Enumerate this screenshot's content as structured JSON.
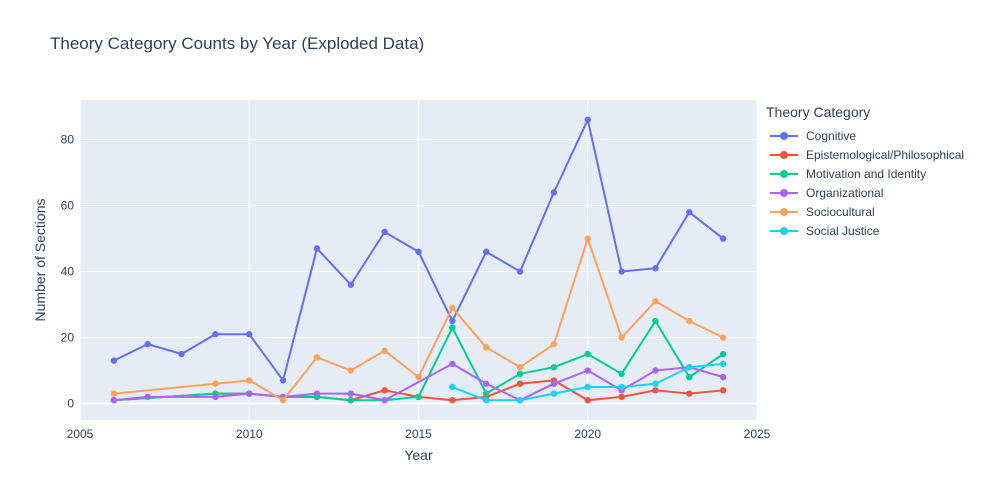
{
  "chart_data": {
    "type": "line",
    "title": "Theory Category Counts by Year (Exploded Data)",
    "xlabel": "Year",
    "ylabel": "Number of Sections",
    "xlim": [
      2005,
      2025
    ],
    "ylim": [
      -5,
      92
    ],
    "xticks": [
      2005,
      2010,
      2015,
      2020,
      2025
    ],
    "yticks": [
      0,
      20,
      40,
      60,
      80
    ],
    "grid": true,
    "legend_title": "Theory Category",
    "legend_position": "right",
    "series": [
      {
        "name": "Cognitive",
        "color": "#636efa",
        "x": [
          2006,
          2007,
          2008,
          2009,
          2010,
          2011,
          2012,
          2013,
          2014,
          2015,
          2016,
          2017,
          2018,
          2019,
          2020,
          2021,
          2022,
          2023,
          2024
        ],
        "y": [
          13,
          18,
          15,
          21,
          21,
          7,
          47,
          36,
          52,
          46,
          25,
          46,
          40,
          64,
          86,
          40,
          41,
          58,
          50
        ]
      },
      {
        "name": "Epistemological/Philosophical",
        "color": "#ef553b",
        "x": [
          2006,
          2009,
          2010,
          2011,
          2012,
          2013,
          2014,
          2015,
          2016,
          2017,
          2018,
          2019,
          2020,
          2021,
          2022,
          2023,
          2024
        ],
        "y": [
          1,
          3,
          3,
          2,
          2,
          1,
          4,
          2,
          1,
          2,
          6,
          7,
          1,
          2,
          4,
          3,
          4
        ]
      },
      {
        "name": "Motivation and Identity",
        "color": "#00cc96",
        "x": [
          2006,
          2009,
          2010,
          2011,
          2012,
          2013,
          2014,
          2015,
          2016,
          2017,
          2018,
          2019,
          2020,
          2021,
          2022,
          2023,
          2024
        ],
        "y": [
          1,
          3,
          3,
          2,
          2,
          1,
          1,
          2,
          23,
          3,
          9,
          11,
          15,
          9,
          25,
          8,
          15
        ]
      },
      {
        "name": "Organizational",
        "color": "#ab63fa",
        "x": [
          2006,
          2007,
          2009,
          2010,
          2011,
          2012,
          2013,
          2014,
          2016,
          2017,
          2018,
          2019,
          2020,
          2021,
          2022,
          2023,
          2024
        ],
        "y": [
          1,
          2,
          2,
          3,
          2,
          3,
          3,
          1,
          12,
          6,
          1,
          6,
          10,
          4,
          10,
          11,
          8
        ]
      },
      {
        "name": "Sociocultural",
        "color": "#ffa15a",
        "x": [
          2006,
          2009,
          2010,
          2011,
          2012,
          2013,
          2014,
          2015,
          2016,
          2017,
          2018,
          2019,
          2020,
          2021,
          2022,
          2023,
          2024
        ],
        "y": [
          3,
          6,
          7,
          1,
          14,
          10,
          16,
          8,
          29,
          17,
          11,
          18,
          50,
          20,
          31,
          25,
          20
        ]
      },
      {
        "name": "Social Justice",
        "color": "#19d3f3",
        "x": [
          2016,
          2017,
          2018,
          2019,
          2020,
          2021,
          2022,
          2023,
          2024
        ],
        "y": [
          5,
          1,
          1,
          3,
          5,
          5,
          6,
          11,
          12
        ]
      }
    ]
  }
}
